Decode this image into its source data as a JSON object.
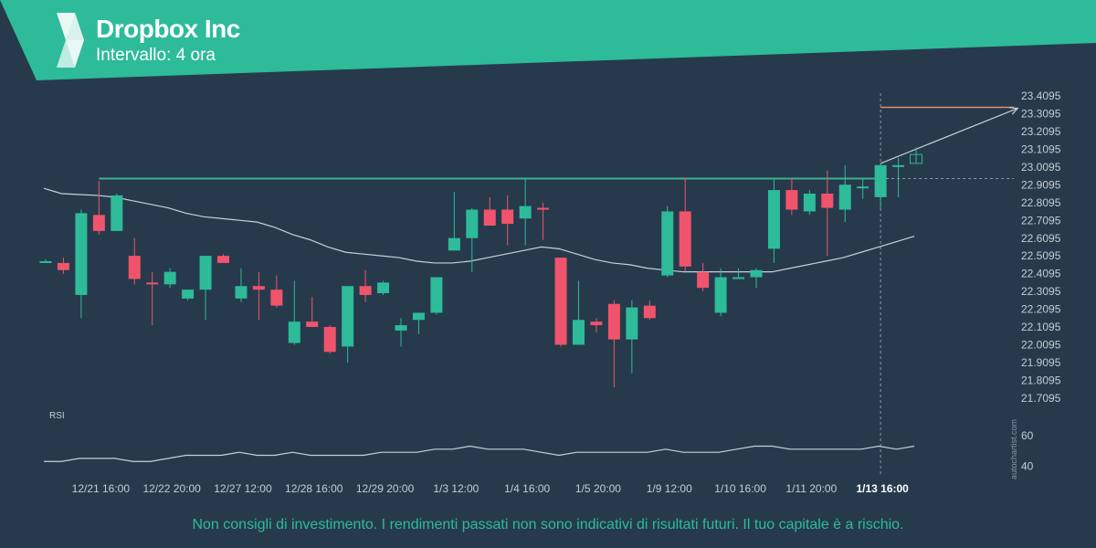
{
  "header": {
    "title": "Dropbox Inc",
    "subtitle": "Intervallo: 4 ora"
  },
  "footer": {
    "disclaimer": "Non consigli di investimento. I rendimenti passati non sono indicativi di risultati futuri. Il tuo capitale è a rischio."
  },
  "watermark": "autochartist.com",
  "colors": {
    "background": "#263a4c",
    "accent": "#2dbb9a",
    "bullish": "#2dbb9a",
    "bearish": "#f0546c",
    "resistance": "#3fb08e",
    "target": "#e8896b",
    "indicator": "#c8d0d8"
  },
  "chart_data": {
    "type": "candlestick",
    "title": "Dropbox Inc",
    "ylim": [
      21.65,
      23.45
    ],
    "y_ticks": [
      "23.4095",
      "23.3095",
      "23.2095",
      "23.1095",
      "23.0095",
      "22.9095",
      "22.8095",
      "22.7095",
      "22.6095",
      "22.5095",
      "22.4095",
      "22.3095",
      "22.2095",
      "22.1095",
      "22.0095",
      "21.9095",
      "21.8095",
      "21.7095"
    ],
    "x_ticks": [
      {
        "index": 3,
        "label": "12/21 16:00"
      },
      {
        "index": 7,
        "label": "12/22 20:00"
      },
      {
        "index": 11,
        "label": "12/27 12:00"
      },
      {
        "index": 15,
        "label": "12/28 16:00"
      },
      {
        "index": 19,
        "label": "12/29 20:00"
      },
      {
        "index": 23,
        "label": "1/3 12:00"
      },
      {
        "index": 27,
        "label": "1/4 16:00"
      },
      {
        "index": 31,
        "label": "1/5 20:00"
      },
      {
        "index": 35,
        "label": "1/9 12:00"
      },
      {
        "index": 39,
        "label": "1/10 16:00"
      },
      {
        "index": 43,
        "label": "1/11 20:00"
      },
      {
        "index": 47,
        "label": "1/13 16:00",
        "highlight": true
      }
    ],
    "candles": [
      {
        "o": 22.48,
        "h": 22.49,
        "l": 22.47,
        "c": 22.48
      },
      {
        "o": 22.47,
        "h": 22.5,
        "l": 22.41,
        "c": 22.43
      },
      {
        "o": 22.29,
        "h": 22.77,
        "l": 22.16,
        "c": 22.75
      },
      {
        "o": 22.74,
        "h": 22.93,
        "l": 22.63,
        "c": 22.65
      },
      {
        "o": 22.65,
        "h": 22.86,
        "l": 22.65,
        "c": 22.85
      },
      {
        "o": 22.51,
        "h": 22.61,
        "l": 22.35,
        "c": 22.38
      },
      {
        "o": 22.36,
        "h": 22.42,
        "l": 22.12,
        "c": 22.35
      },
      {
        "o": 22.35,
        "h": 22.44,
        "l": 22.33,
        "c": 22.42
      },
      {
        "o": 22.27,
        "h": 22.32,
        "l": 22.26,
        "c": 22.32
      },
      {
        "o": 22.32,
        "h": 22.51,
        "l": 22.15,
        "c": 22.51
      },
      {
        "o": 22.51,
        "h": 22.52,
        "l": 22.47,
        "c": 22.47
      },
      {
        "o": 22.27,
        "h": 22.44,
        "l": 22.25,
        "c": 22.34
      },
      {
        "o": 22.34,
        "h": 22.42,
        "l": 22.15,
        "c": 22.32
      },
      {
        "o": 22.32,
        "h": 22.4,
        "l": 22.22,
        "c": 22.23
      },
      {
        "o": 22.02,
        "h": 22.37,
        "l": 22.01,
        "c": 22.14
      },
      {
        "o": 22.14,
        "h": 22.28,
        "l": 22.11,
        "c": 22.11
      },
      {
        "o": 22.11,
        "h": 22.12,
        "l": 21.96,
        "c": 21.97
      },
      {
        "o": 22.0,
        "h": 22.34,
        "l": 21.91,
        "c": 22.34
      },
      {
        "o": 22.34,
        "h": 22.43,
        "l": 22.25,
        "c": 22.29
      },
      {
        "o": 22.3,
        "h": 22.37,
        "l": 22.29,
        "c": 22.36
      },
      {
        "o": 22.09,
        "h": 22.16,
        "l": 22.0,
        "c": 22.12
      },
      {
        "o": 22.15,
        "h": 22.19,
        "l": 22.07,
        "c": 22.19
      },
      {
        "o": 22.19,
        "h": 22.39,
        "l": 22.18,
        "c": 22.39
      },
      {
        "o": 22.54,
        "h": 22.87,
        "l": 22.54,
        "c": 22.61
      },
      {
        "o": 22.61,
        "h": 22.78,
        "l": 22.42,
        "c": 22.77
      },
      {
        "o": 22.77,
        "h": 22.84,
        "l": 22.69,
        "c": 22.68
      },
      {
        "o": 22.77,
        "h": 22.85,
        "l": 22.57,
        "c": 22.69
      },
      {
        "o": 22.72,
        "h": 22.95,
        "l": 22.57,
        "c": 22.79
      },
      {
        "o": 22.78,
        "h": 22.81,
        "l": 22.6,
        "c": 22.77
      },
      {
        "o": 22.5,
        "h": 22.5,
        "l": 22.0,
        "c": 22.01
      },
      {
        "o": 22.01,
        "h": 22.37,
        "l": 22.01,
        "c": 22.15
      },
      {
        "o": 22.14,
        "h": 22.16,
        "l": 22.08,
        "c": 22.12
      },
      {
        "o": 22.24,
        "h": 22.26,
        "l": 21.77,
        "c": 22.04
      },
      {
        "o": 22.04,
        "h": 22.26,
        "l": 21.85,
        "c": 22.22
      },
      {
        "o": 22.23,
        "h": 22.26,
        "l": 22.15,
        "c": 22.16
      },
      {
        "o": 22.4,
        "h": 22.79,
        "l": 22.39,
        "c": 22.76
      },
      {
        "o": 22.76,
        "h": 22.95,
        "l": 22.42,
        "c": 22.45
      },
      {
        "o": 22.42,
        "h": 22.47,
        "l": 22.31,
        "c": 22.33
      },
      {
        "o": 22.19,
        "h": 22.44,
        "l": 22.17,
        "c": 22.39
      },
      {
        "o": 22.39,
        "h": 22.44,
        "l": 22.38,
        "c": 22.39
      },
      {
        "o": 22.39,
        "h": 22.44,
        "l": 22.33,
        "c": 22.43
      },
      {
        "o": 22.55,
        "h": 22.94,
        "l": 22.47,
        "c": 22.88
      },
      {
        "o": 22.88,
        "h": 22.95,
        "l": 22.74,
        "c": 22.77
      },
      {
        "o": 22.76,
        "h": 22.88,
        "l": 22.74,
        "c": 22.86
      },
      {
        "o": 22.86,
        "h": 22.99,
        "l": 22.51,
        "c": 22.78
      },
      {
        "o": 22.77,
        "h": 23.02,
        "l": 22.7,
        "c": 22.91
      },
      {
        "o": 22.9,
        "h": 22.94,
        "l": 22.83,
        "c": 22.9
      },
      {
        "o": 22.84,
        "h": 23.03,
        "l": 22.77,
        "c": 23.02
      },
      {
        "o": 23.02,
        "h": 23.06,
        "l": 22.84,
        "c": 23.02
      },
      {
        "o": 23.03,
        "h": 23.12,
        "l": 23.03,
        "c": 23.08,
        "hollow": true
      }
    ],
    "moving_average": [
      22.89,
      22.86,
      22.855,
      22.85,
      22.84,
      22.82,
      22.8,
      22.78,
      22.75,
      22.73,
      22.72,
      22.71,
      22.7,
      22.67,
      22.63,
      22.6,
      22.56,
      22.53,
      22.52,
      22.51,
      22.5,
      22.48,
      22.47,
      22.47,
      22.48,
      22.5,
      22.52,
      22.54,
      22.56,
      22.55,
      22.52,
      22.49,
      22.47,
      22.46,
      22.44,
      22.43,
      22.42,
      22.42,
      22.42,
      22.42,
      22.42,
      22.42,
      22.44,
      22.46,
      22.48,
      22.5,
      22.53,
      22.56,
      22.59,
      22.62
    ],
    "resistance_level": 22.945,
    "target_level": 23.345,
    "projection": {
      "from_index": 47,
      "from_value": 23.03,
      "to_index": 54,
      "to_value": 23.34
    },
    "rsi": {
      "label": "RSI",
      "ticks": [
        "60",
        "40"
      ],
      "ylim": [
        30,
        70
      ],
      "values": [
        43,
        43,
        45,
        45,
        45,
        43,
        43,
        45,
        47,
        47,
        47,
        49,
        47,
        47,
        49,
        47,
        47,
        47,
        47,
        49,
        49,
        49,
        51,
        51,
        53,
        51,
        51,
        51,
        49,
        47,
        49,
        49,
        49,
        49,
        49,
        51,
        49,
        49,
        49,
        51,
        53,
        53,
        51,
        51,
        51,
        51,
        51,
        53,
        51,
        53
      ]
    }
  }
}
